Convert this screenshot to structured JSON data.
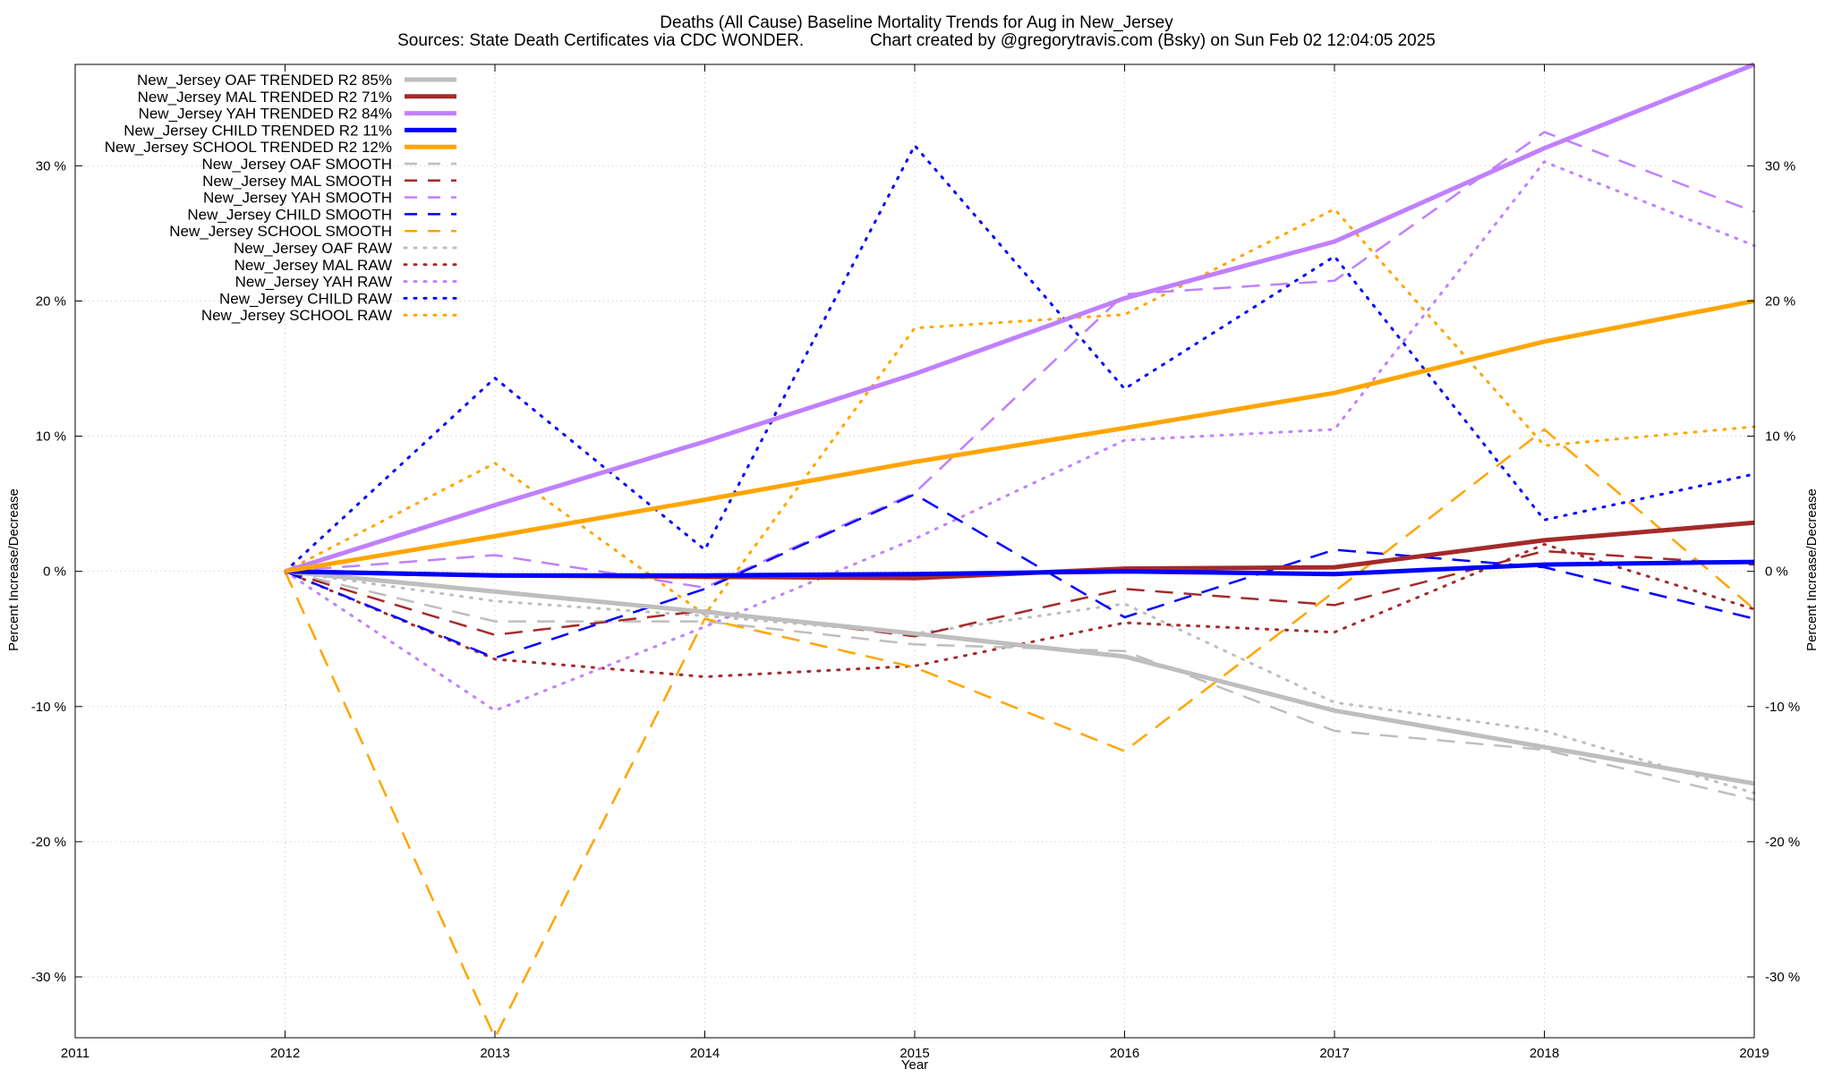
{
  "chart_data": {
    "type": "line",
    "title": "Deaths (All Cause)  Baseline Mortality Trends for Aug in New_Jersey",
    "subtitle": "Sources: State Death Certificates via CDC WONDER.              Chart created by @gregorytravis.com (Bsky) on Sun Feb 02 12:04:05 2025",
    "xlabel": "Year",
    "ylabel": "Percent Increase/Decrease",
    "y2label": "Percent Increase/Decrease",
    "xlim": [
      2011,
      2019
    ],
    "ylim": [
      -34.5,
      37.5
    ],
    "x_ticks": [
      "2011",
      "2012",
      "2013",
      "2014",
      "2015",
      "2016",
      "2017",
      "2018",
      "2019"
    ],
    "y_ticks": [
      -30,
      -20,
      -10,
      0,
      10,
      20,
      30
    ],
    "y_tick_labels": [
      "-30 %",
      "-20 %",
      "-10 %",
      "0 %",
      "10 %",
      "20 %",
      "30 %"
    ],
    "grid": true,
    "legend_position": "top-left",
    "x": [
      2012,
      2013,
      2014,
      2015,
      2016,
      2017,
      2018,
      2019
    ],
    "series": [
      {
        "name": "New_Jersey OAF TRENDED R2  85%",
        "color": "#bebebe",
        "style": "solid",
        "values": [
          0,
          -1.5,
          -3.0,
          -4.6,
          -6.3,
          -10.3,
          -13.0,
          -15.7
        ]
      },
      {
        "name": "New_Jersey MAL TRENDED R2  71%",
        "color": "#a52a2a",
        "style": "solid",
        "values": [
          0,
          -0.3,
          -0.4,
          -0.5,
          0.2,
          0.3,
          2.3,
          3.6
        ]
      },
      {
        "name": "New_Jersey YAH TRENDED R2  84%",
        "color": "#c080ff",
        "style": "solid",
        "values": [
          0,
          4.9,
          9.6,
          14.6,
          20.2,
          24.4,
          31.3,
          37.5
        ]
      },
      {
        "name": "New_Jersey CHILD TRENDED R2  11%",
        "color": "#0000ff",
        "style": "solid",
        "values": [
          0,
          -0.3,
          -0.3,
          -0.2,
          0.0,
          -0.2,
          0.5,
          0.7
        ]
      },
      {
        "name": "New_Jersey SCHOOL TRENDED R2  12%",
        "color": "#ffa500",
        "style": "solid",
        "values": [
          0,
          2.6,
          5.3,
          8.1,
          10.6,
          13.2,
          17.0,
          20.0
        ]
      },
      {
        "name": "New_Jersey OAF SMOOTH",
        "color": "#bebebe",
        "style": "dashed",
        "values": [
          0,
          -3.7,
          -3.7,
          -5.4,
          -5.9,
          -11.8,
          -13.2,
          -16.9
        ]
      },
      {
        "name": "New_Jersey MAL SMOOTH",
        "color": "#a52a2a",
        "style": "dashed",
        "values": [
          0,
          -4.7,
          -2.9,
          -4.8,
          -1.3,
          -2.5,
          1.5,
          0.5
        ]
      },
      {
        "name": "New_Jersey YAH SMOOTH",
        "color": "#c080ff",
        "style": "dashed",
        "values": [
          0,
          1.2,
          -1.2,
          5.8,
          20.5,
          21.5,
          32.5,
          26.6
        ]
      },
      {
        "name": "New_Jersey CHILD SMOOTH",
        "color": "#0000ff",
        "style": "dashed",
        "values": [
          0,
          -6.4,
          -1.3,
          5.7,
          -3.4,
          1.6,
          0.3,
          -3.5
        ]
      },
      {
        "name": "New_Jersey SCHOOL SMOOTH",
        "color": "#ffa500",
        "style": "dashed",
        "values": [
          0,
          -34.5,
          -3.5,
          -7.1,
          -13.3,
          -1.5,
          10.5,
          -2.8
        ]
      },
      {
        "name": "New_Jersey OAF RAW",
        "color": "#bebebe",
        "style": "dotted",
        "values": [
          0,
          -2.2,
          -3.3,
          -4.6,
          -2.4,
          -9.7,
          -11.8,
          -16.4
        ]
      },
      {
        "name": "New_Jersey MAL RAW",
        "color": "#a52a2a",
        "style": "dotted",
        "values": [
          0,
          -6.5,
          -7.8,
          -7.0,
          -3.8,
          -4.5,
          2.0,
          -2.8
        ]
      },
      {
        "name": "New_Jersey YAH RAW",
        "color": "#c080ff",
        "style": "dotted",
        "values": [
          0,
          -10.3,
          -4.1,
          2.4,
          9.7,
          10.5,
          30.3,
          24.1
        ]
      },
      {
        "name": "New_Jersey CHILD RAW",
        "color": "#0000ff",
        "style": "dotted",
        "values": [
          0,
          14.3,
          1.6,
          31.5,
          13.5,
          23.3,
          3.8,
          7.2
        ]
      },
      {
        "name": "New_Jersey SCHOOL RAW",
        "color": "#ffa500",
        "style": "dotted",
        "values": [
          0,
          8.0,
          -3.2,
          18.0,
          19.0,
          26.8,
          9.3,
          10.7
        ]
      }
    ]
  }
}
